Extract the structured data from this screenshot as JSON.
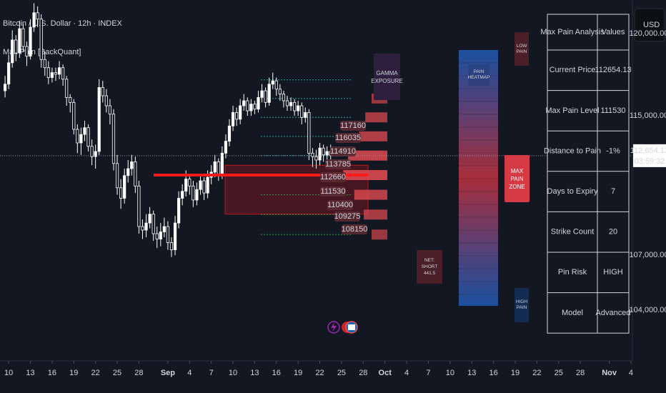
{
  "chart_data": {
    "type": "candlestick",
    "title": "Bitcoin / U.S. Dollar · 12h · INDEX",
    "subtitle": "Max Pain [BackQuant]",
    "color": "#ffffff",
    "log_scale": true,
    "grid": false,
    "x": [
      9.5,
      10,
      10.5,
      11,
      11.5,
      12,
      12.5,
      13,
      13.5,
      14,
      14.5,
      15,
      15.5,
      16,
      16.5,
      17,
      17.5,
      18,
      18.5,
      19,
      19.5,
      20,
      20.5,
      21,
      21.5,
      22,
      22.5,
      23,
      23.5,
      24,
      24.5,
      25,
      25.5,
      26,
      26.5,
      27,
      27.5,
      28,
      28.5,
      29,
      29.5,
      30,
      30.5,
      31,
      31.5,
      32,
      32.5,
      33,
      33.5,
      34,
      34.5,
      35,
      35.5,
      36,
      36.5,
      37,
      37.5,
      38,
      38.5,
      39,
      39.5,
      40,
      40.5,
      41,
      41.5,
      42,
      42.5,
      43,
      43.5,
      44,
      44.5,
      45,
      45.5,
      46,
      46.5,
      47,
      47.5,
      48,
      48.5,
      49,
      49.5,
      50,
      50.5,
      51,
      51.5,
      52,
      52.5,
      53,
      53.5,
      54,
      54.5
    ],
    "open": [
      116500,
      116900,
      118200,
      119600,
      118800,
      120300,
      119200,
      118600,
      120400,
      121300,
      120900,
      118400,
      117900,
      117300,
      117600,
      117500,
      117900,
      117200,
      116100,
      115800,
      114200,
      113400,
      113900,
      114300,
      113200,
      112600,
      112900,
      116700,
      116200,
      115600,
      115100,
      112200,
      110800,
      110200,
      111500,
      111900,
      112300,
      110900,
      108600,
      108400,
      108800,
      109300,
      108200,
      107900,
      108300,
      108600,
      107700,
      107300,
      108800,
      110200,
      110600,
      111300,
      110900,
      110100,
      110700,
      111200,
      110500,
      111400,
      111700,
      112300,
      111600,
      112800,
      113500,
      114400,
      115200,
      114800,
      115600,
      115900,
      115300,
      115700,
      115400,
      116100,
      116500,
      115800,
      116900,
      117100,
      116600,
      116300,
      115900,
      115600,
      115800,
      115300,
      115600,
      114900,
      115200,
      112800,
      112600,
      112400,
      113100,
      112700,
      112900
    ],
    "high": [
      117400,
      118700,
      120200,
      119900,
      120800,
      120600,
      119500,
      120900,
      121900,
      121700,
      121200,
      118900,
      118300,
      117900,
      117900,
      118300,
      118100,
      117400,
      116300,
      116000,
      114500,
      114300,
      114700,
      114500,
      113600,
      113300,
      117200,
      117100,
      116600,
      116000,
      115400,
      112700,
      111300,
      111900,
      112400,
      112700,
      112600,
      111200,
      109000,
      109300,
      109700,
      109500,
      108600,
      108800,
      109100,
      108900,
      108000,
      109200,
      110600,
      111000,
      111800,
      111600,
      111200,
      111100,
      111600,
      111400,
      111800,
      112100,
      112700,
      112500,
      113200,
      113900,
      114800,
      115600,
      115500,
      116000,
      116300,
      116100,
      116000,
      115900,
      116500,
      116900,
      116700,
      117300,
      117600,
      117300,
      116900,
      116500,
      116200,
      116100,
      116000,
      115900,
      115800,
      115500,
      115400,
      113100,
      113000,
      113400,
      113300,
      113200,
      113300
    ],
    "low": [
      116100,
      116600,
      117900,
      118300,
      118500,
      118900,
      118000,
      118400,
      120100,
      120400,
      117900,
      117400,
      116900,
      117000,
      117100,
      117200,
      116800,
      115600,
      115200,
      113900,
      112800,
      112700,
      113500,
      112900,
      112100,
      111900,
      112700,
      115800,
      115200,
      114500,
      111800,
      110400,
      109600,
      109900,
      111100,
      111500,
      110500,
      108200,
      107900,
      108000,
      108500,
      107800,
      107400,
      107500,
      108000,
      107300,
      106900,
      107000,
      108500,
      109800,
      110300,
      110400,
      109700,
      109800,
      110400,
      110100,
      110200,
      111000,
      111400,
      111200,
      111300,
      112500,
      113200,
      114100,
      114400,
      114500,
      115300,
      115000,
      115000,
      115100,
      115200,
      115800,
      115500,
      115600,
      116600,
      116200,
      115900,
      115500,
      115300,
      115300,
      115000,
      115000,
      114500,
      114600,
      112400,
      112000,
      111900,
      112100,
      112300,
      112400,
      112400
    ],
    "close": [
      116900,
      118200,
      119600,
      118800,
      120300,
      119200,
      118600,
      120400,
      121300,
      120900,
      118400,
      117900,
      117300,
      117600,
      117500,
      117900,
      117200,
      116100,
      115800,
      114200,
      113400,
      113900,
      114300,
      113200,
      112600,
      112900,
      116700,
      116200,
      115600,
      115100,
      112200,
      110800,
      110200,
      111500,
      111900,
      112300,
      110900,
      108600,
      108400,
      108800,
      109300,
      108200,
      107900,
      108300,
      108600,
      107700,
      107300,
      108800,
      110200,
      110600,
      111300,
      110900,
      110100,
      110700,
      111200,
      110500,
      111400,
      111700,
      112300,
      111600,
      112800,
      113500,
      114400,
      115200,
      114800,
      115600,
      115900,
      115300,
      115700,
      115400,
      116100,
      116500,
      115800,
      116900,
      117100,
      116600,
      116300,
      115900,
      115600,
      115800,
      115300,
      115600,
      114900,
      115200,
      112800,
      112600,
      112400,
      113100,
      112700,
      112900,
      112654.13
    ],
    "xlim": [
      8.8,
      96.2
    ],
    "xticks": [
      10,
      13,
      16,
      19,
      22,
      25,
      28,
      {
        "value": 32,
        "label": "Sep"
      },
      {
        "value": 35,
        "label": "4"
      },
      {
        "value": 38,
        "label": "7"
      },
      {
        "value": 41,
        "label": "10"
      },
      {
        "value": 44,
        "label": "13"
      },
      {
        "value": 47,
        "label": "16"
      },
      {
        "value": 50,
        "label": "19"
      },
      {
        "value": 53,
        "label": "22"
      },
      {
        "value": 56,
        "label": "25"
      },
      {
        "value": 59,
        "label": "28"
      },
      {
        "value": 62,
        "label": "Oct"
      },
      {
        "value": 65,
        "label": "4"
      },
      {
        "value": 68,
        "label": "7"
      },
      {
        "value": 71,
        "label": "10"
      },
      {
        "value": 74,
        "label": "13"
      },
      {
        "value": 77,
        "label": "16"
      },
      {
        "value": 80,
        "label": "19"
      },
      {
        "value": 83,
        "label": "22"
      },
      {
        "value": 86,
        "label": "25"
      },
      {
        "value": 89,
        "label": "28"
      },
      {
        "value": 93,
        "label": "Nov"
      },
      {
        "value": 96,
        "label": "4"
      }
    ],
    "ylim": [
      101500,
      122100
    ],
    "yticks": [
      {
        "value": 104000,
        "label": "104,000.00"
      },
      {
        "value": 107000,
        "label": "107,000.00"
      },
      {
        "value": 115000,
        "label": "115,000.00"
      },
      {
        "value": 120000,
        "label": "120,000.00"
      }
    ],
    "current_price": {
      "value": 112654.13,
      "label": "112,654.13"
    },
    "countdown": "03:59:32",
    "currency": "USD"
  },
  "max_pain": {
    "level": 111530,
    "zone": [
      109300,
      112100
    ],
    "line_color": "#ff1a1a",
    "strike_labels": [
      117160,
      116035,
      114910,
      113785,
      112660,
      111530,
      110400,
      109275,
      108150
    ],
    "gamma_exposure": [
      14,
      20,
      28,
      36,
      50,
      56,
      42,
      30,
      20
    ],
    "gamma_label": "GAMMA EXPOSURE",
    "heatmap_label": "PAIN HEATMAP",
    "low_pain_label": "LOW PAIN",
    "high_pain_label": "HIGH PAIN",
    "zone_label": "MAX PAIN ZONE",
    "net_label": "NET: SHORT",
    "net_value": 441.5
  },
  "table": {
    "rows": [
      [
        "Max Pain Analysis",
        "Values"
      ],
      [
        "Current Price",
        112654.13
      ],
      [
        "Max Pain Level",
        111530
      ],
      [
        "Distance to Pain",
        "-1%"
      ],
      [
        "Days to Expiry",
        7
      ],
      [
        "Strike Count",
        20
      ],
      [
        "Pin Risk",
        "HIGH"
      ],
      [
        "Model",
        "Advanced"
      ]
    ],
    "value_colors": {
      "2": "#f23645",
      "3": "#4caf50",
      "6": "#f23645"
    }
  }
}
